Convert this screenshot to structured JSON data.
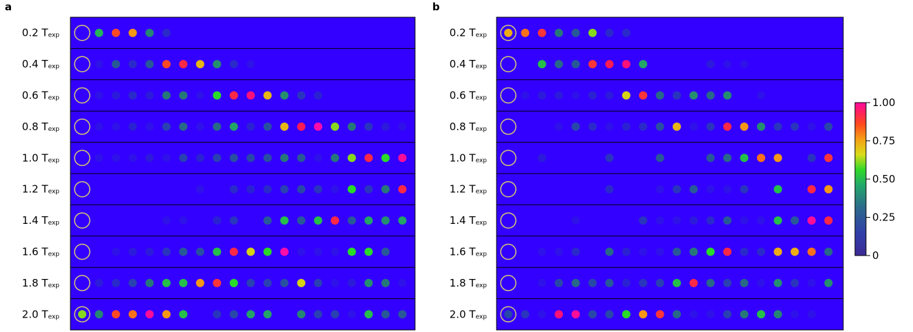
{
  "chart_data": [
    {
      "type": "heatmap",
      "panel": "a",
      "rows": [
        "0.2",
        "0.4",
        "0.6",
        "0.8",
        "1.0",
        "1.2",
        "1.4",
        "1.6",
        "1.8",
        "2.0"
      ],
      "row_prefix_unit": "T",
      "row_sub": "exp",
      "values": [
        [
          0,
          0.48,
          0.85,
          0.75,
          0.38,
          0.12,
          0,
          0,
          0,
          0,
          0,
          0,
          0,
          0,
          0,
          0,
          0,
          0,
          0,
          0
        ],
        [
          0,
          0.05,
          0.25,
          0.12,
          0.25,
          0.85,
          0.9,
          0.7,
          0.4,
          0.12,
          0.05,
          0,
          0,
          0,
          0,
          0,
          0,
          0,
          0,
          0
        ],
        [
          0,
          0.05,
          0.08,
          0.12,
          0.08,
          0.35,
          0.35,
          0.05,
          0.55,
          0.9,
          0.95,
          0.7,
          0.4,
          0.15,
          0.1,
          0,
          0,
          0,
          0,
          0
        ],
        [
          0,
          0.05,
          0.05,
          0.1,
          0.05,
          0.18,
          0.3,
          0.05,
          0.3,
          0.45,
          0.1,
          0.22,
          0.7,
          0.92,
          0.98,
          0.6,
          0.35,
          0.15,
          0.08,
          0.05
        ],
        [
          0,
          0.05,
          0.05,
          0.05,
          0.08,
          0.05,
          0.18,
          0.1,
          0.18,
          0.22,
          0.2,
          0.22,
          0.35,
          0.25,
          0.05,
          0.35,
          0.6,
          0.9,
          0.55,
          0.97
        ],
        [
          0,
          0,
          0,
          0,
          0,
          0,
          0,
          0.05,
          0,
          0.12,
          0.1,
          0.12,
          0.18,
          0.2,
          0.15,
          0.05,
          0.55,
          0.15,
          0.35,
          0.9
        ],
        [
          0,
          0,
          0,
          0,
          0,
          0.05,
          0.05,
          0,
          0.1,
          0.15,
          0,
          0.25,
          0.5,
          0.25,
          0.5,
          0.9,
          0.25,
          0.45,
          0.4,
          0.45
        ],
        [
          0,
          0,
          0.05,
          0.08,
          0.08,
          0.15,
          0.25,
          0.22,
          0.5,
          0.9,
          0.65,
          0.55,
          0.98,
          0.05,
          0.05,
          0.05,
          0.55,
          0.55,
          0.25,
          0
        ],
        [
          0,
          0.08,
          0.12,
          0.18,
          0.35,
          0.5,
          0.5,
          0.75,
          0.88,
          0.55,
          0.18,
          0.18,
          0.22,
          0.65,
          0.18,
          0.05,
          0.08,
          0.4,
          0.35,
          0.05
        ],
        [
          0.6,
          0.38,
          0.85,
          0.8,
          0.97,
          0.75,
          0.5,
          0,
          0.15,
          0.2,
          0.45,
          0.45,
          0,
          0.38,
          0.18,
          0.18,
          0.05,
          0.5,
          0.25,
          0.25
        ]
      ]
    },
    {
      "type": "heatmap",
      "panel": "b",
      "rows": [
        "0.2",
        "0.4",
        "0.6",
        "0.8",
        "1.0",
        "1.2",
        "1.4",
        "1.6",
        "1.8",
        "2.0"
      ],
      "row_prefix_unit": "T",
      "row_sub": "exp",
      "values": [
        [
          0.72,
          0.8,
          0.88,
          0.35,
          0.25,
          0.6,
          0.12,
          0.12,
          0,
          0,
          0,
          0,
          0,
          0,
          0,
          0,
          0,
          0,
          0,
          0
        ],
        [
          0,
          0,
          0.5,
          0.3,
          0.25,
          0.88,
          0.92,
          0.95,
          0.45,
          0,
          0,
          0,
          0.08,
          0.05,
          0.05,
          0,
          0,
          0,
          0,
          0
        ],
        [
          0,
          0.05,
          0.08,
          0.08,
          0.05,
          0.1,
          0.08,
          0.65,
          0.88,
          0.3,
          0.15,
          0.4,
          0.3,
          0.4,
          0,
          0.05,
          0,
          0,
          0,
          0
        ],
        [
          0,
          0,
          0,
          0.05,
          0.2,
          0.12,
          0.05,
          0.1,
          0.12,
          0.22,
          0.7,
          0.05,
          0.15,
          0.9,
          0.75,
          0.4,
          0.15,
          0.15,
          0.05,
          0.2
        ],
        [
          0,
          0,
          0.08,
          0,
          0,
          0,
          0.15,
          0,
          0,
          0.25,
          0,
          0,
          0.25,
          0.3,
          0.5,
          0.8,
          0.75,
          0,
          0.15,
          0.88
        ],
        [
          0,
          0,
          0,
          0,
          0,
          0,
          0.12,
          0,
          0,
          0.05,
          0.15,
          0.25,
          0.05,
          0.05,
          0.15,
          0,
          0.5,
          0,
          0.9,
          0.75
        ],
        [
          0,
          0,
          0,
          0,
          0.05,
          0,
          0,
          0,
          0.15,
          0.05,
          0.05,
          0.08,
          0.12,
          0.25,
          0.05,
          0.05,
          0.5,
          0.25,
          0.97,
          0.9
        ],
        [
          0,
          0,
          0.05,
          0.05,
          0.12,
          0,
          0.3,
          0.1,
          0.05,
          0.05,
          0.25,
          0.35,
          0.55,
          0.9,
          0.12,
          0.12,
          0.72,
          0.72,
          0.8,
          0.3
        ],
        [
          0,
          0,
          0.05,
          0.2,
          0.3,
          0.2,
          0.25,
          0.1,
          0.15,
          0.18,
          0.5,
          0.9,
          0.3,
          0.18,
          0.3,
          0.05,
          0.4,
          0.15,
          0.05,
          0.4
        ],
        [
          0.2,
          0.15,
          0.05,
          0.95,
          0.97,
          0.2,
          0.2,
          0.55,
          0.75,
          0.88,
          0.3,
          0.05,
          0.05,
          0.18,
          0.35,
          0.5,
          0.38,
          0.05,
          0.05,
          0
        ]
      ]
    }
  ],
  "panels": {
    "a": "a",
    "b": "b"
  },
  "colorbar": {
    "ticks": [
      "0",
      "0.25",
      "0.50",
      "0.75",
      "1.00"
    ]
  },
  "colors": {
    "background": "#3300ff",
    "frame": "#000000",
    "highlight_ring": "#d8c870"
  }
}
